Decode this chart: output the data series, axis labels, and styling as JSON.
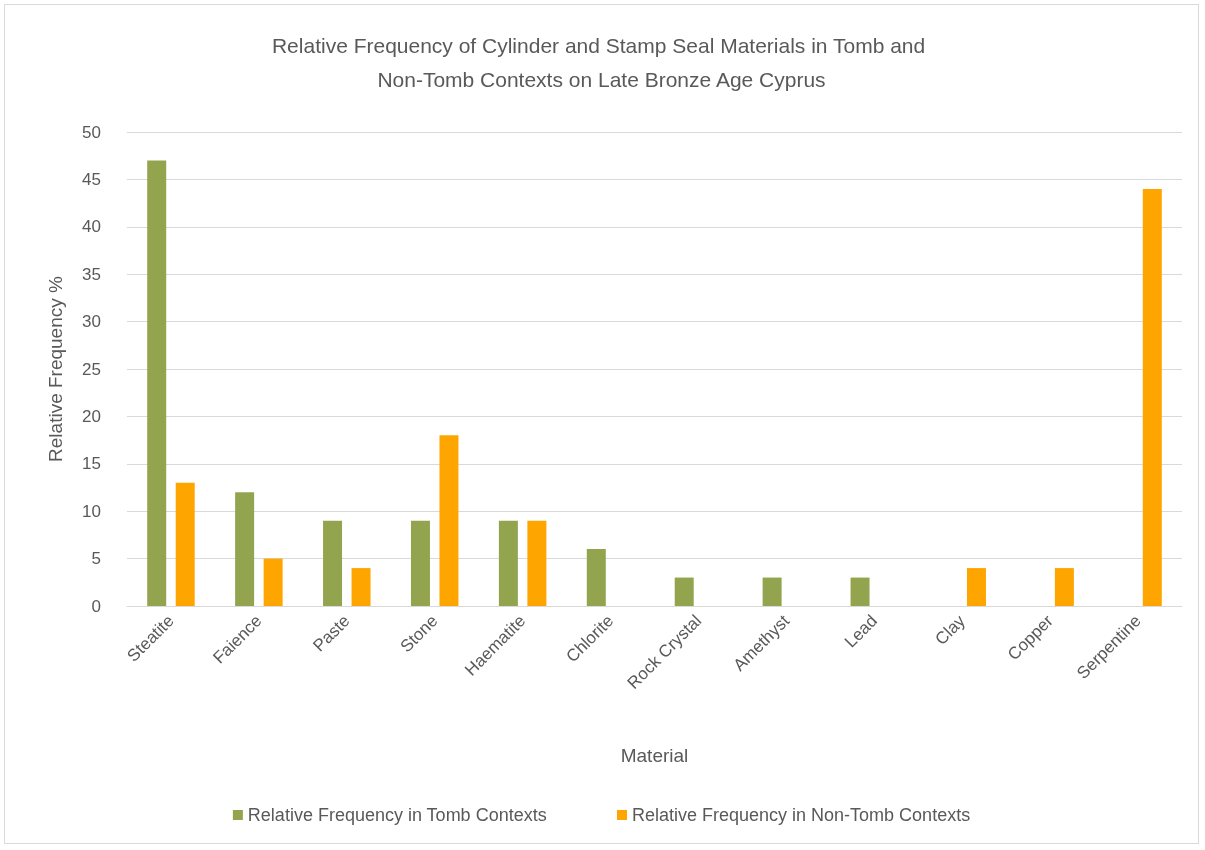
{
  "chart_data": {
    "type": "bar",
    "title": "Relative Frequency of Cylinder and Stamp Seal Materials in Tomb and Non-Tomb Contexts on Late Bronze Age Cyprus",
    "xlabel": "Material",
    "ylabel": "Relative Frequency %",
    "categories": [
      "Steatite",
      "Faience",
      "Paste",
      "Stone",
      "Haematite",
      "Chlorite",
      "Rock Crystal",
      "Amethyst",
      "Lead",
      "Clay",
      "Copper",
      "Serpentine"
    ],
    "series": [
      {
        "name": "Relative Frequency in Tomb Contexts",
        "color": "#93a44f",
        "values": [
          47,
          12,
          9,
          9,
          9,
          6,
          3,
          3,
          3,
          null,
          null,
          null
        ]
      },
      {
        "name": "Relative Frequency in Non-Tomb Contexts",
        "color": "#ffa500",
        "values": [
          13,
          5,
          4,
          18,
          9,
          null,
          null,
          null,
          null,
          4,
          4,
          44
        ]
      }
    ],
    "ylim": [
      0,
      50
    ],
    "yticks": [
      0,
      5,
      10,
      15,
      20,
      25,
      30,
      35,
      40,
      45,
      50
    ],
    "grid": "y",
    "legend": "bottom"
  }
}
